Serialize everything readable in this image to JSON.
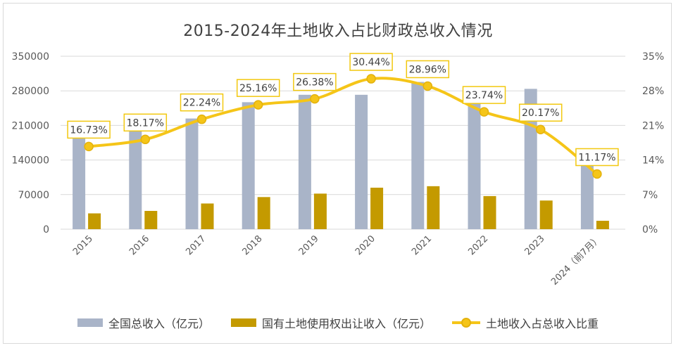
{
  "chart_data": {
    "type": "bar",
    "title": "2015-2024年土地收入占比财政总收入情况",
    "categories": [
      "2015",
      "2016",
      "2017",
      "2018",
      "2019",
      "2020",
      "2021",
      "2022",
      "2023",
      "2024（前7月）"
    ],
    "y_left": {
      "ticks": [
        "0",
        "70000",
        "140000",
        "210000",
        "280000",
        "350000"
      ],
      "ylim": [
        0,
        350000
      ]
    },
    "y_right": {
      "ticks": [
        "0%",
        "7%",
        "14%",
        "21%",
        "28%",
        "35%"
      ],
      "ylim": [
        0,
        35
      ]
    },
    "series": [
      {
        "name": "全国总收入（亿元）",
        "type": "bar",
        "axis": "left",
        "color": "#A9B4C8",
        "values": [
          192000,
          201000,
          224000,
          257000,
          272000,
          272000,
          298000,
          277000,
          284000,
          155000
        ]
      },
      {
        "name": "国有土地使用权出让收入（亿元）",
        "type": "bar",
        "axis": "left",
        "color": "#C49A00",
        "values": [
          32000,
          37000,
          52000,
          65000,
          72000,
          84000,
          87000,
          67000,
          58000,
          17000
        ]
      },
      {
        "name": "土地收入占总收入比重",
        "type": "line",
        "axis": "right",
        "color": "#F5C518",
        "values": [
          16.73,
          18.17,
          22.24,
          25.16,
          26.38,
          30.44,
          28.96,
          23.74,
          20.17,
          11.17
        ],
        "labels": [
          "16.73%",
          "18.17%",
          "22.24%",
          "25.16%",
          "26.38%",
          "30.44%",
          "28.96%",
          "23.74%",
          "20.17%",
          "11.17%"
        ]
      }
    ],
    "grid": true,
    "legend_position": "bottom"
  }
}
